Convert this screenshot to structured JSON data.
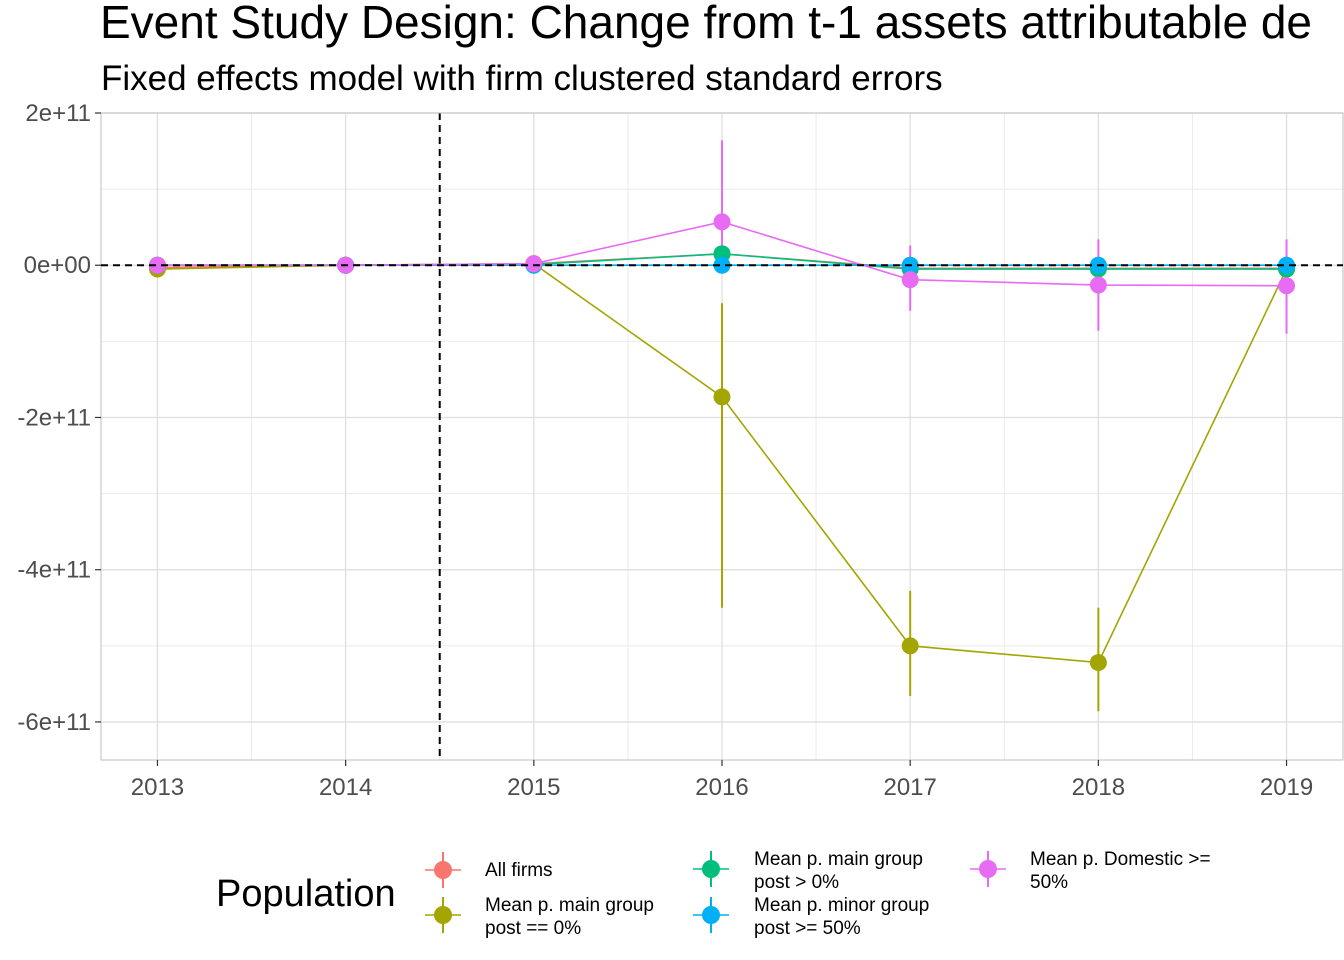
{
  "chart_data": {
    "type": "line",
    "title": "Event Study Design: Change from t-1 assets attributable de",
    "subtitle": "Fixed effects model with firm clustered standard errors",
    "xlabel": "",
    "ylabel": "",
    "x": [
      2013,
      2014,
      2015,
      2016,
      2017,
      2018,
      2019
    ],
    "x_tick_labels": [
      "2013",
      "2014",
      "2015",
      "2016",
      "2017",
      "2018",
      "2019"
    ],
    "ylim": [
      -650000000000.0,
      200000000000.0
    ],
    "y_ticks": [
      200000000000.0,
      0,
      -200000000000.0,
      -400000000000.0,
      -600000000000.0
    ],
    "y_tick_labels": [
      "2e+11",
      "0e+00",
      "-2e+11",
      "-4e+11",
      "-6e+11"
    ],
    "reference_lines": {
      "vertical_x": 2014.5,
      "horizontal_y": 0
    },
    "grid": true,
    "legend": {
      "title": "Population",
      "position": "bottom"
    },
    "series": [
      {
        "name": "All firms",
        "color": "#F8766D",
        "points": [
          {
            "x": 2013,
            "y": -3000000000.0,
            "lo": -3000000000.0,
            "hi": -3000000000.0
          },
          {
            "x": 2014,
            "y": 0,
            "lo": 0,
            "hi": 0
          },
          {
            "x": 2015,
            "y": 2000000000.0,
            "lo": 2000000000.0,
            "hi": 2000000000.0
          },
          {
            "x": 2016,
            "y": 15000000000.0,
            "lo": 15000000000.0,
            "hi": 15000000000.0
          },
          {
            "x": 2017,
            "y": -4000000000.0,
            "lo": -4000000000.0,
            "hi": -4000000000.0
          },
          {
            "x": 2018,
            "y": -4000000000.0,
            "lo": -4000000000.0,
            "hi": -4000000000.0
          },
          {
            "x": 2019,
            "y": -4000000000.0,
            "lo": -4000000000.0,
            "hi": -4000000000.0
          }
        ]
      },
      {
        "name": "Mean p. main group\npost == 0%",
        "color": "#A3A500",
        "points": [
          {
            "x": 2013,
            "y": -5000000000.0,
            "lo": -5000000000.0,
            "hi": -5000000000.0
          },
          {
            "x": 2014,
            "y": 0,
            "lo": 0,
            "hi": 0
          },
          {
            "x": 2015,
            "y": 2000000000.0,
            "lo": 2000000000.0,
            "hi": 2000000000.0
          },
          {
            "x": 2016,
            "y": -173000000000.0,
            "lo": -450000000000.0,
            "hi": -50000000000.0
          },
          {
            "x": 2017,
            "y": -500000000000.0,
            "lo": -566000000000.0,
            "hi": -428000000000.0
          },
          {
            "x": 2018,
            "y": -522000000000.0,
            "lo": -586000000000.0,
            "hi": -450000000000.0
          },
          {
            "x": 2019,
            "y": -5000000000.0,
            "lo": -5000000000.0,
            "hi": -5000000000.0
          }
        ]
      },
      {
        "name": "Mean p. main group\npost > 0%",
        "color": "#00BF7D",
        "points": [
          {
            "x": 2013,
            "y": 0,
            "lo": 0,
            "hi": 0
          },
          {
            "x": 2014,
            "y": 0,
            "lo": 0,
            "hi": 0
          },
          {
            "x": 2015,
            "y": 1000000000.0,
            "lo": 1000000000.0,
            "hi": 1000000000.0
          },
          {
            "x": 2016,
            "y": 15000000000.0,
            "lo": 15000000000.0,
            "hi": 15000000000.0
          },
          {
            "x": 2017,
            "y": -5000000000.0,
            "lo": -5000000000.0,
            "hi": -5000000000.0
          },
          {
            "x": 2018,
            "y": -5000000000.0,
            "lo": -5000000000.0,
            "hi": -5000000000.0
          },
          {
            "x": 2019,
            "y": -5000000000.0,
            "lo": -5000000000.0,
            "hi": -5000000000.0
          }
        ]
      },
      {
        "name": "Mean p. minor group\npost >= 50%",
        "color": "#00B0F6",
        "points": [
          {
            "x": 2013,
            "y": 0,
            "lo": 0,
            "hi": 0
          },
          {
            "x": 2014,
            "y": 0,
            "lo": 0,
            "hi": 0
          },
          {
            "x": 2015,
            "y": 0,
            "lo": 0,
            "hi": 0
          },
          {
            "x": 2016,
            "y": 0,
            "lo": 0,
            "hi": 0
          },
          {
            "x": 2017,
            "y": 0,
            "lo": 0,
            "hi": 0
          },
          {
            "x": 2018,
            "y": 0,
            "lo": 0,
            "hi": 0
          },
          {
            "x": 2019,
            "y": 0,
            "lo": 0,
            "hi": 0
          }
        ]
      },
      {
        "name": "Mean p. Domestic >=\n50%",
        "color": "#E76BF3",
        "points": [
          {
            "x": 2013,
            "y": 0,
            "lo": 0,
            "hi": 0
          },
          {
            "x": 2014,
            "y": 0,
            "lo": 0,
            "hi": 0
          },
          {
            "x": 2015,
            "y": 2000000000.0,
            "lo": 2000000000.0,
            "hi": 2000000000.0
          },
          {
            "x": 2016,
            "y": 57000000000.0,
            "lo": -10000000000.0,
            "hi": 164000000000.0
          },
          {
            "x": 2017,
            "y": -19000000000.0,
            "lo": -60000000000.0,
            "hi": 26000000000.0
          },
          {
            "x": 2018,
            "y": -26000000000.0,
            "lo": -86000000000.0,
            "hi": 34000000000.0
          },
          {
            "x": 2019,
            "y": -27000000000.0,
            "lo": -90000000000.0,
            "hi": 34000000000.0
          }
        ]
      }
    ]
  }
}
